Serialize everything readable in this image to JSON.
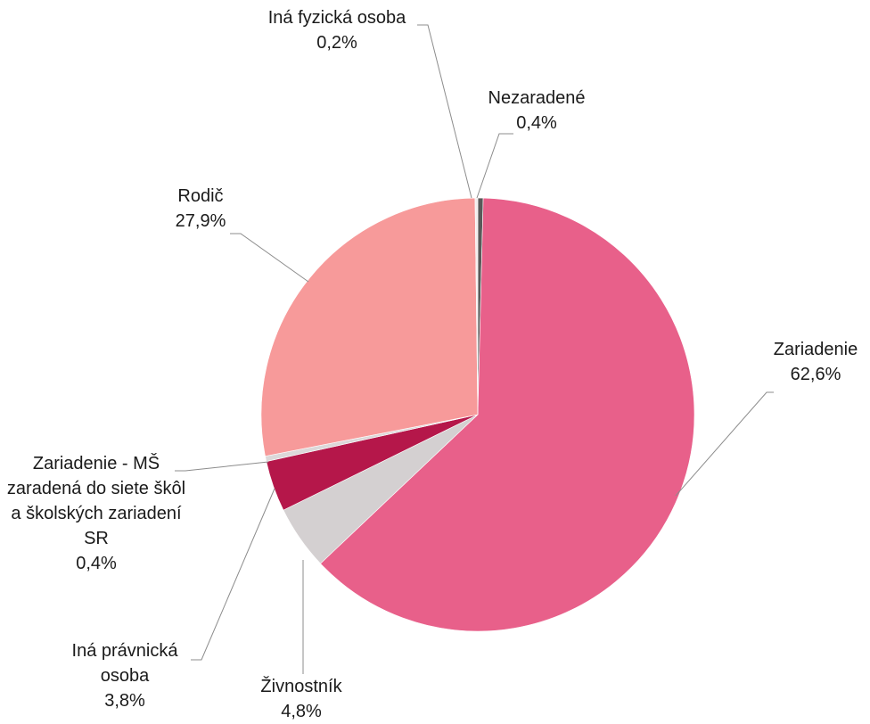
{
  "chart_data": {
    "type": "pie",
    "categories": [
      "Nezaradené",
      "Zariadenie",
      "Živnostník",
      "Iná právnická osoba",
      "Zariadenie - MŠ zaradená do siete škôl a školských zariadení SR",
      "Rodič",
      "Iná fyzická osoba"
    ],
    "values": [
      0.4,
      62.6,
      4.8,
      3.8,
      0.4,
      27.9,
      0.2
    ],
    "value_labels": [
      "0,4%",
      "62,6%",
      "4,8%",
      "3,8%",
      "0,4%",
      "27,9%",
      "0,2%"
    ],
    "colors": [
      "#595959",
      "#e8608a",
      "#d4d0d1",
      "#b5174a",
      "#dcd8d9",
      "#f79a9a",
      "#f2eeee"
    ]
  }
}
